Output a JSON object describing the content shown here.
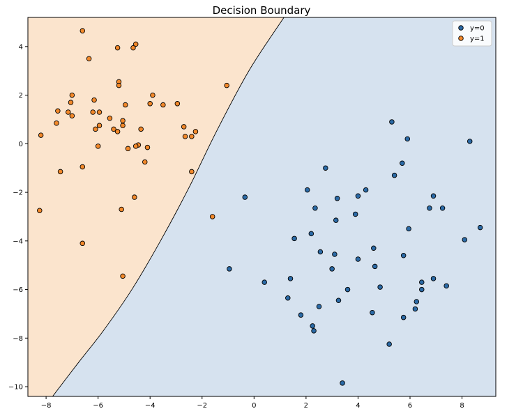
{
  "chart_data": {
    "type": "scatter",
    "title": "Decision Boundary",
    "xlabel": "",
    "ylabel": "",
    "xlim": [
      -8.7,
      9.3
    ],
    "ylim": [
      -10.4,
      5.2
    ],
    "xticks": [
      -8,
      -6,
      -4,
      -2,
      0,
      2,
      4,
      6,
      8
    ],
    "yticks": [
      -10,
      -8,
      -6,
      -4,
      -2,
      0,
      2,
      4
    ],
    "grid": false,
    "legend_position": "top-right",
    "boundary": {
      "description_free": true,
      "points": [
        [
          1.15,
          5.2
        ],
        [
          -0.2,
          3.0
        ],
        [
          -1.45,
          0.5
        ],
        [
          -2.5,
          -1.8
        ],
        [
          -3.6,
          -4.0
        ],
        [
          -4.7,
          -6.0
        ],
        [
          -5.8,
          -7.7
        ],
        [
          -6.75,
          -9.0
        ],
        [
          -7.75,
          -10.4
        ]
      ],
      "class1_region_color": "#fbe4cd",
      "class0_region_color": "#d6e2ef"
    },
    "series": [
      {
        "name": "y=0",
        "color": "#2b6aa6",
        "points": [
          [
            5.3,
            0.9
          ],
          [
            5.9,
            0.2
          ],
          [
            8.3,
            0.1
          ],
          [
            5.7,
            -0.8
          ],
          [
            2.75,
            -1.0
          ],
          [
            5.4,
            -1.3
          ],
          [
            2.05,
            -1.9
          ],
          [
            4.3,
            -1.9
          ],
          [
            4.0,
            -2.15
          ],
          [
            6.9,
            -2.15
          ],
          [
            -0.35,
            -2.2
          ],
          [
            3.2,
            -2.25
          ],
          [
            2.35,
            -2.65
          ],
          [
            6.75,
            -2.65
          ],
          [
            7.25,
            -2.65
          ],
          [
            3.9,
            -2.9
          ],
          [
            3.15,
            -3.15
          ],
          [
            5.95,
            -3.5
          ],
          [
            8.7,
            -3.45
          ],
          [
            2.2,
            -3.7
          ],
          [
            1.55,
            -3.9
          ],
          [
            8.1,
            -3.95
          ],
          [
            4.6,
            -4.3
          ],
          [
            2.55,
            -4.45
          ],
          [
            3.1,
            -4.55
          ],
          [
            5.75,
            -4.6
          ],
          [
            4.0,
            -4.75
          ],
          [
            4.65,
            -5.05
          ],
          [
            -0.95,
            -5.15
          ],
          [
            3.0,
            -5.15
          ],
          [
            1.4,
            -5.55
          ],
          [
            6.9,
            -5.55
          ],
          [
            0.4,
            -5.7
          ],
          [
            6.45,
            -5.7
          ],
          [
            7.4,
            -5.85
          ],
          [
            4.85,
            -5.9
          ],
          [
            3.6,
            -6.0
          ],
          [
            6.45,
            -6.0
          ],
          [
            1.3,
            -6.35
          ],
          [
            3.25,
            -6.45
          ],
          [
            6.25,
            -6.5
          ],
          [
            2.5,
            -6.7
          ],
          [
            6.2,
            -6.8
          ],
          [
            4.55,
            -6.95
          ],
          [
            1.8,
            -7.05
          ],
          [
            5.75,
            -7.15
          ],
          [
            2.25,
            -7.5
          ],
          [
            2.3,
            -7.7
          ],
          [
            5.2,
            -8.25
          ],
          [
            3.4,
            -9.85
          ]
        ]
      },
      {
        "name": "y=1",
        "color": "#f2882a",
        "points": [
          [
            -6.6,
            4.65
          ],
          [
            -5.25,
            3.95
          ],
          [
            -4.55,
            4.1
          ],
          [
            -4.65,
            3.95
          ],
          [
            -6.35,
            3.5
          ],
          [
            -5.2,
            2.55
          ],
          [
            -5.2,
            2.4
          ],
          [
            -1.05,
            2.4
          ],
          [
            -7.0,
            2.0
          ],
          [
            -3.9,
            2.0
          ],
          [
            -6.15,
            1.8
          ],
          [
            -3.5,
            1.6
          ],
          [
            -4.0,
            1.65
          ],
          [
            -2.95,
            1.65
          ],
          [
            -7.05,
            1.7
          ],
          [
            -4.95,
            1.6
          ],
          [
            -7.55,
            1.35
          ],
          [
            -7.15,
            1.3
          ],
          [
            -6.2,
            1.3
          ],
          [
            -5.95,
            1.3
          ],
          [
            -7.0,
            1.15
          ],
          [
            -5.55,
            1.05
          ],
          [
            -5.05,
            0.95
          ],
          [
            -7.6,
            0.85
          ],
          [
            -5.05,
            0.75
          ],
          [
            -5.95,
            0.75
          ],
          [
            -2.7,
            0.7
          ],
          [
            -6.1,
            0.6
          ],
          [
            -5.4,
            0.6
          ],
          [
            -4.35,
            0.6
          ],
          [
            -5.25,
            0.5
          ],
          [
            -2.25,
            0.5
          ],
          [
            -8.2,
            0.35
          ],
          [
            -2.65,
            0.3
          ],
          [
            -2.4,
            0.3
          ],
          [
            -4.45,
            -0.05
          ],
          [
            -6.0,
            -0.1
          ],
          [
            -4.55,
            -0.1
          ],
          [
            -4.85,
            -0.2
          ],
          [
            -4.1,
            -0.15
          ],
          [
            -4.2,
            -0.75
          ],
          [
            -6.6,
            -0.95
          ],
          [
            -7.45,
            -1.15
          ],
          [
            -2.4,
            -1.15
          ],
          [
            -4.6,
            -2.2
          ],
          [
            -8.25,
            -2.75
          ],
          [
            -5.1,
            -2.7
          ],
          [
            -1.6,
            -3.0
          ],
          [
            -6.6,
            -4.1
          ],
          [
            -5.05,
            -5.45
          ]
        ]
      }
    ],
    "legend": [
      "y=0",
      "y=1"
    ]
  }
}
